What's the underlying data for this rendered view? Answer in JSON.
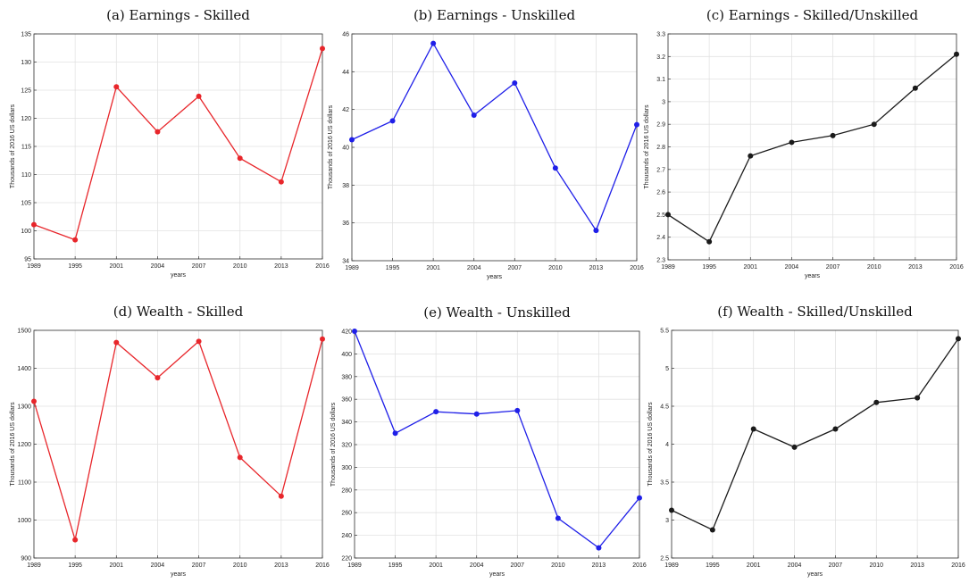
{
  "chart_data": [
    {
      "type": "line",
      "title": "(a) Earnings - Skilled",
      "xlabel": "years",
      "ylabel": "Thousands of 2016 US dollars",
      "x": [
        "1989",
        "1995",
        "2001",
        "2004",
        "2007",
        "2010",
        "2013",
        "2016"
      ],
      "series": [
        {
          "values": [
            101.1,
            98.4,
            125.6,
            117.6,
            123.9,
            112.9,
            108.7,
            132.4
          ],
          "color": "#e8262b"
        }
      ],
      "ylim": [
        95,
        135
      ],
      "yticks": [
        "95",
        "100",
        "105",
        "110",
        "115",
        "120",
        "125",
        "130",
        "135"
      ],
      "grid": true
    },
    {
      "type": "line",
      "title": "(b) Earnings - Unskilled",
      "xlabel": "years",
      "ylabel": "Thousands of 2016 US dollars",
      "x": [
        "1989",
        "1995",
        "2001",
        "2004",
        "2007",
        "2010",
        "2013",
        "2016"
      ],
      "series": [
        {
          "values": [
            40.4,
            41.4,
            45.5,
            41.7,
            43.4,
            38.9,
            35.6,
            41.2
          ],
          "color": "#1f1fe8"
        }
      ],
      "ylim": [
        34,
        46
      ],
      "yticks": [
        "34",
        "36",
        "38",
        "40",
        "42",
        "44",
        "46"
      ],
      "grid": true
    },
    {
      "type": "line",
      "title": "(c) Earnings - Skilled/Unskilled",
      "xlabel": "years",
      "ylabel": "Thousands of 2016 US dollars",
      "x": [
        "1989",
        "1995",
        "2001",
        "2004",
        "2007",
        "2010",
        "2013",
        "2016"
      ],
      "series": [
        {
          "values": [
            2.5,
            2.38,
            2.76,
            2.82,
            2.85,
            2.9,
            3.06,
            3.21
          ],
          "color": "#1a1a1a"
        }
      ],
      "ylim": [
        2.3,
        3.3
      ],
      "yticks": [
        "2.3",
        "2.4",
        "2.5",
        "2.6",
        "2.7",
        "2.8",
        "2.9",
        "3",
        "3.1",
        "3.2",
        "3.3"
      ],
      "grid": true
    },
    {
      "type": "line",
      "title": "(d) Wealth - Skilled",
      "xlabel": "years",
      "ylabel": "Thousands of 2016 US dollars",
      "x": [
        "1989",
        "1995",
        "2001",
        "2004",
        "2007",
        "2010",
        "2013",
        "2016"
      ],
      "series": [
        {
          "values": [
            1313,
            948,
            1468,
            1375,
            1471,
            1165,
            1063,
            1477
          ],
          "color": "#e8262b"
        }
      ],
      "ylim": [
        900,
        1500
      ],
      "yticks": [
        "900",
        "1000",
        "1100",
        "1200",
        "1300",
        "1400",
        "1500"
      ],
      "grid": true
    },
    {
      "type": "line",
      "title": "(e) Wealth - Unskilled",
      "xlabel": "years",
      "ylabel": "Thousands of 2016 US dollars",
      "x": [
        "1989",
        "1995",
        "2001",
        "2004",
        "2007",
        "2010",
        "2013",
        "2016"
      ],
      "series": [
        {
          "values": [
            420,
            330,
            349,
            347,
            350,
            255,
            229,
            273
          ],
          "color": "#1f1fe8"
        }
      ],
      "ylim": [
        220,
        420
      ],
      "yticks": [
        "220",
        "240",
        "260",
        "280",
        "300",
        "320",
        "340",
        "360",
        "380",
        "400",
        "420"
      ],
      "grid": true
    },
    {
      "type": "line",
      "title": "(f) Wealth - Skilled/Unskilled",
      "xlabel": "years",
      "ylabel": "Thousands of 2016 US dollars",
      "x": [
        "1989",
        "1995",
        "2001",
        "2004",
        "2007",
        "2010",
        "2013",
        "2016"
      ],
      "series": [
        {
          "values": [
            3.13,
            2.87,
            4.2,
            3.96,
            4.2,
            4.55,
            4.61,
            5.39
          ],
          "color": "#1a1a1a"
        }
      ],
      "ylim": [
        2.5,
        5.5
      ],
      "yticks": [
        "2.5",
        "3",
        "3.5",
        "4",
        "4.5",
        "5",
        "5.5"
      ],
      "grid": true
    }
  ]
}
